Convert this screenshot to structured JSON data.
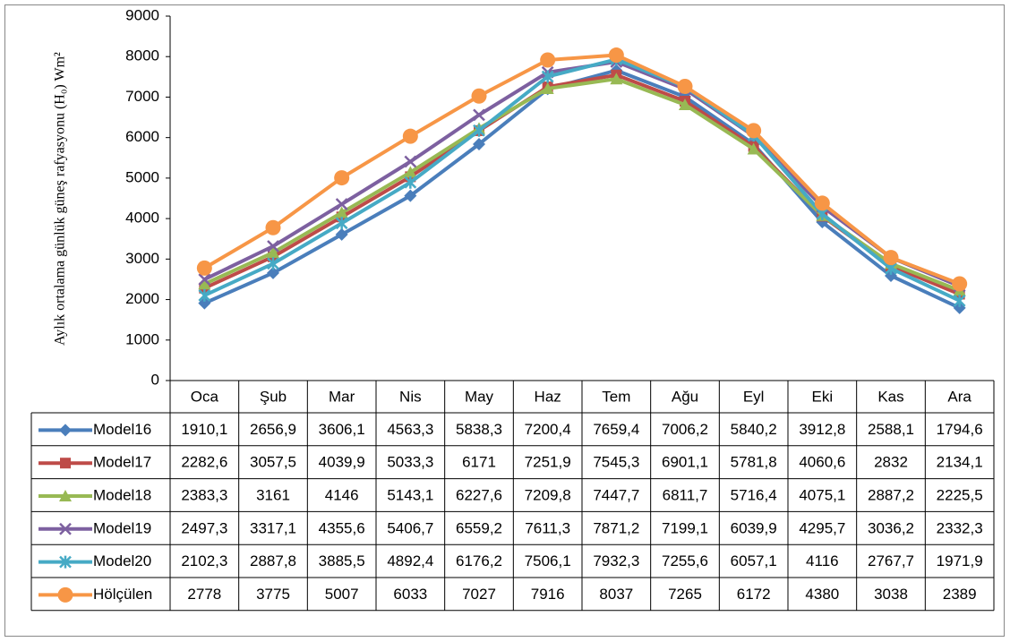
{
  "chart_data": {
    "type": "line",
    "y_label": "Aylık ortalama günlük güneş rafyasyonu (H₀) Wm²",
    "categories": [
      "Oca",
      "Şub",
      "Mar",
      "Nis",
      "May",
      "Haz",
      "Tem",
      "Ağu",
      "Eyl",
      "Eki",
      "Kas",
      "Ara"
    ],
    "ylim": [
      0,
      9000
    ],
    "yticks": [
      0,
      1000,
      2000,
      3000,
      4000,
      5000,
      6000,
      7000,
      8000,
      9000
    ],
    "series": [
      {
        "name": "Model16",
        "color": "#4a7ebb",
        "marker": "diamond",
        "values": [
          1910.1,
          2656.9,
          3606.1,
          4563.3,
          5838.3,
          7200.4,
          7659.4,
          7006.2,
          5840.2,
          3912.8,
          2588.1,
          1794.6
        ],
        "value_labels": [
          "1910,1",
          "2656,9",
          "3606,1",
          "4563,3",
          "5838,3",
          "7200,4",
          "7659,4",
          "7006,2",
          "5840,2",
          "3912,8",
          "2588,1",
          "1794,6"
        ]
      },
      {
        "name": "Model17",
        "color": "#be4b48",
        "marker": "square",
        "values": [
          2282.6,
          3057.5,
          4039.9,
          5033.3,
          6171,
          7251.9,
          7545.3,
          6901.1,
          5781.8,
          4060.6,
          2832,
          2134.1
        ],
        "value_labels": [
          "2282,6",
          "3057,5",
          "4039,9",
          "5033,3",
          "6171",
          "7251,9",
          "7545,3",
          "6901,1",
          "5781,8",
          "4060,6",
          "2832",
          "2134,1"
        ]
      },
      {
        "name": "Model18",
        "color": "#98b954",
        "marker": "triangle",
        "values": [
          2383.3,
          3161,
          4146,
          5143.1,
          6227.6,
          7209.8,
          7447.7,
          6811.7,
          5716.4,
          4075.1,
          2887.2,
          2225.5
        ],
        "value_labels": [
          "2383,3",
          "3161",
          "4146",
          "5143,1",
          "6227,6",
          "7209,8",
          "7447,7",
          "6811,7",
          "5716,4",
          "4075,1",
          "2887,2",
          "2225,5"
        ]
      },
      {
        "name": "Model19",
        "color": "#7d60a0",
        "marker": "x",
        "values": [
          2497.3,
          3317.1,
          4355.6,
          5406.7,
          6559.2,
          7611.3,
          7871.2,
          7199.1,
          6039.9,
          4295.7,
          3036.2,
          2332.3
        ],
        "value_labels": [
          "2497,3",
          "3317,1",
          "4355,6",
          "5406,7",
          "6559,2",
          "7611,3",
          "7871,2",
          "7199,1",
          "6039,9",
          "4295,7",
          "3036,2",
          "2332,3"
        ]
      },
      {
        "name": "Model20",
        "color": "#46aac5",
        "marker": "star",
        "values": [
          2102.3,
          2887.8,
          3885.5,
          4892.4,
          6176.2,
          7506.1,
          7932.3,
          7255.6,
          6057.1,
          4116,
          2767.7,
          1971.9
        ],
        "value_labels": [
          "2102,3",
          "2887,8",
          "3885,5",
          "4892,4",
          "6176,2",
          "7506,1",
          "7932,3",
          "7255,6",
          "6057,1",
          "4116",
          "2767,7",
          "1971,9"
        ]
      },
      {
        "name": "Hölçülen",
        "color": "#f79646",
        "marker": "circle",
        "values": [
          2778,
          3775,
          5007,
          6033,
          7027,
          7916,
          8037,
          7265,
          6172,
          4380,
          3038,
          2389
        ],
        "value_labels": [
          "2778",
          "3775",
          "5007",
          "6033",
          "7027",
          "7916",
          "8037",
          "7265",
          "6172",
          "4380",
          "3038",
          "2389"
        ]
      }
    ]
  }
}
